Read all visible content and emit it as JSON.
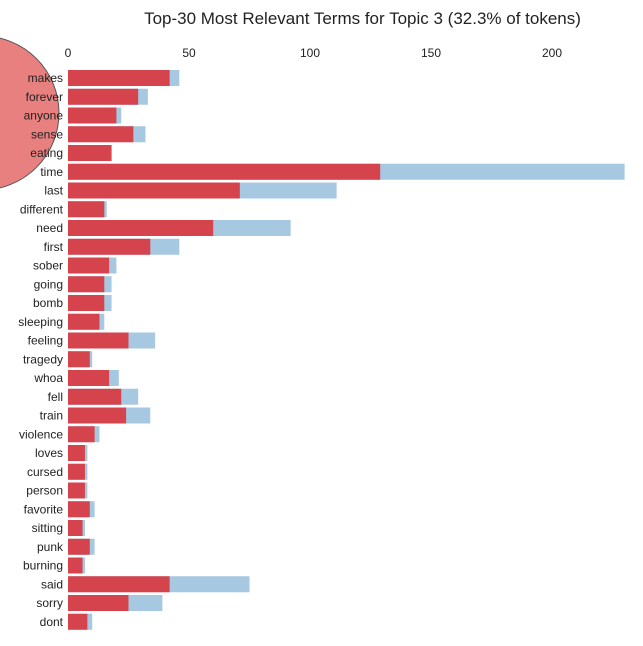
{
  "chart_data": {
    "type": "bar",
    "title": "Top-30 Most Relevant Terms for Topic 3 (32.3% of tokens)",
    "xlim": [
      0,
      230
    ],
    "x_ticks": [
      0,
      50,
      100,
      150,
      200
    ],
    "categories": [
      "makes",
      "forever",
      "anyone",
      "sense",
      "eating",
      "time",
      "last",
      "different",
      "need",
      "first",
      "sober",
      "going",
      "bomb",
      "sleeping",
      "feeling",
      "tragedy",
      "whoa",
      "fell",
      "train",
      "violence",
      "loves",
      "cursed",
      "person",
      "favorite",
      "sitting",
      "punk",
      "burning",
      "said",
      "sorry",
      "dont"
    ],
    "series": [
      {
        "role": "overall",
        "values": [
          46,
          33,
          22,
          32,
          18,
          230,
          111,
          16,
          92,
          46,
          20,
          18,
          18,
          15,
          36,
          10,
          21,
          29,
          34,
          13,
          8,
          8,
          8,
          11,
          7,
          11,
          7,
          75,
          39,
          10
        ]
      },
      {
        "role": "topic",
        "values": [
          42,
          29,
          20,
          27,
          18,
          129,
          71,
          15,
          60,
          34,
          17,
          15,
          15,
          13,
          25,
          9,
          17,
          22,
          24,
          11,
          7,
          7,
          7,
          9,
          6,
          9,
          6,
          42,
          25,
          8
        ]
      }
    ],
    "colors": {
      "overall": "#a6c8e0",
      "topic": "#d5434d",
      "circle": "#e88080",
      "axis_text": "#222222"
    },
    "grid": false,
    "legend": "none"
  }
}
